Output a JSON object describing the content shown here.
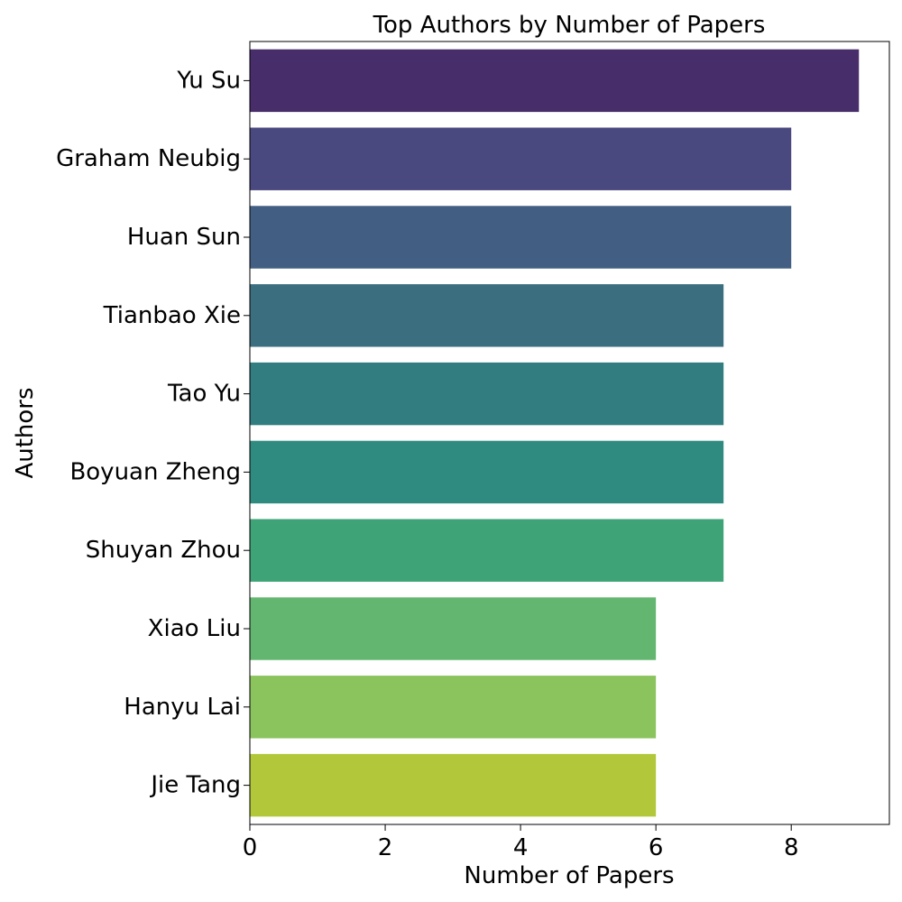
{
  "chart_data": {
    "type": "bar",
    "orientation": "horizontal",
    "title": "Top Authors by Number of Papers",
    "xlabel": "Number of Papers",
    "ylabel": "Authors",
    "categories": [
      "Yu Su",
      "Graham Neubig",
      "Huan Sun",
      "Tianbao Xie",
      "Tao Yu",
      "Boyuan Zheng",
      "Shuyan Zhou",
      "Xiao Liu",
      "Hanyu Lai",
      "Jie Tang"
    ],
    "values": [
      9,
      8,
      8,
      7,
      7,
      7,
      7,
      6,
      6,
      6
    ],
    "colors": [
      "#482d6b",
      "#4a497f",
      "#425f83",
      "#3b6f80",
      "#317d80",
      "#2f8b7f",
      "#3ea376",
      "#62b66f",
      "#8bc45c",
      "#b2c83a"
    ],
    "xlim": [
      0,
      9.45
    ],
    "xticks": [
      0,
      2,
      4,
      6,
      8
    ],
    "grid": false,
    "legend": "none"
  }
}
